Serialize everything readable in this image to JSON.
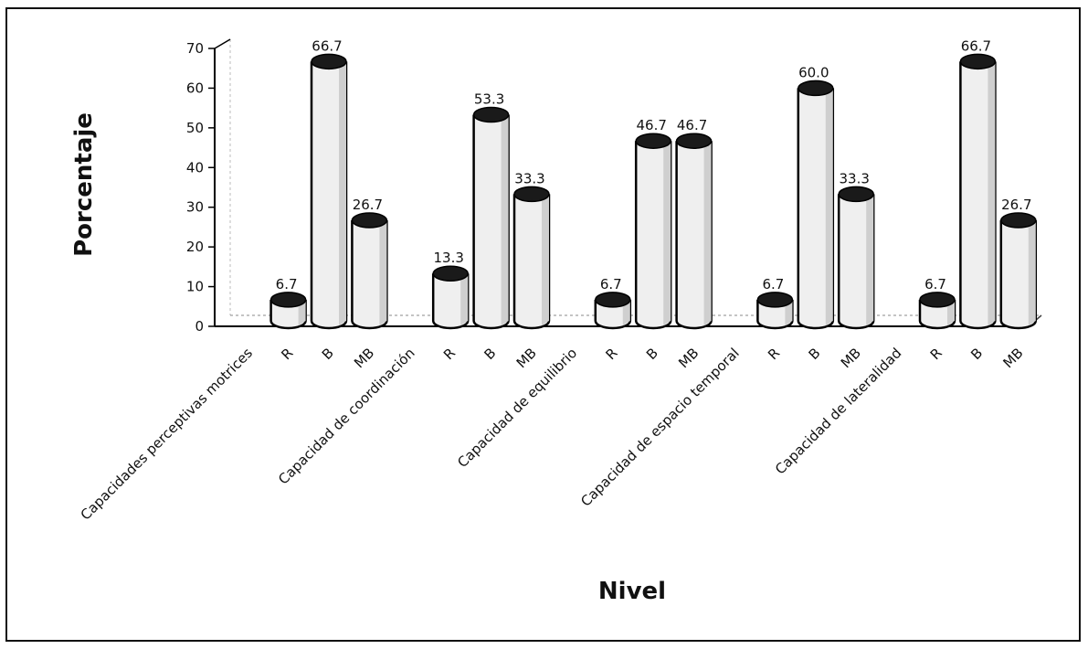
{
  "chart_data": {
    "type": "bar",
    "style": "3d-cylinder",
    "xlabel": "Nivel",
    "ylabel": "Porcentaje",
    "ylim": [
      0,
      70
    ],
    "yticks": [
      0,
      10,
      20,
      30,
      40,
      50,
      60,
      70
    ],
    "grid": false,
    "legend": "none",
    "groups": [
      {
        "name": "Capacidades perceptivas motrices",
        "categories": [
          "R",
          "B",
          "MB"
        ],
        "values": [
          6.7,
          66.7,
          26.7
        ]
      },
      {
        "name": "Capacidad de coordinación",
        "categories": [
          "R",
          "B",
          "MB"
        ],
        "values": [
          13.3,
          53.3,
          33.3
        ]
      },
      {
        "name": "Capacidad de equilibrio",
        "categories": [
          "R",
          "B",
          "MB"
        ],
        "values": [
          6.7,
          46.7,
          46.7
        ]
      },
      {
        "name": "Capacidad de espacio temporal",
        "categories": [
          "R",
          "B",
          "MB"
        ],
        "values": [
          6.7,
          60.0,
          33.3
        ]
      },
      {
        "name": "Capacidad de lateralidad",
        "categories": [
          "R",
          "B",
          "MB"
        ],
        "values": [
          6.7,
          66.7,
          26.7
        ]
      }
    ],
    "colors": {
      "bar_fill": "#efefef",
      "bar_outline": "#000000",
      "bar_top": "#1a1a1a"
    }
  }
}
